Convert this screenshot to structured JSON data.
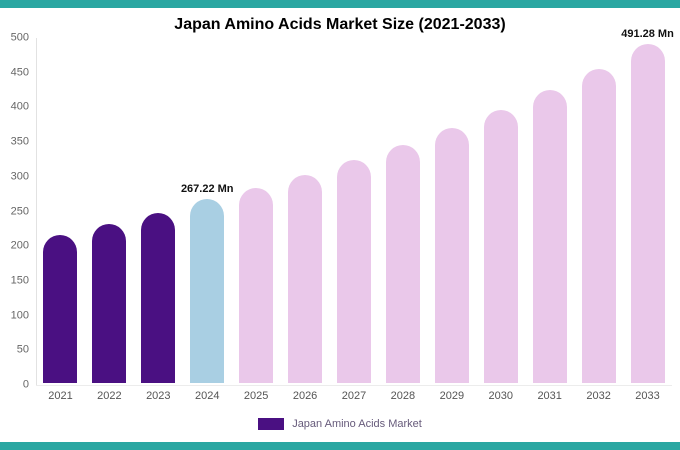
{
  "page": {
    "title": "Japan Amino Acids Market Size (2021-2033)",
    "accent_color": "#2aa7a2",
    "background": "#ffffff"
  },
  "legend": {
    "items": [
      {
        "label": "Japan Amino Acids Market",
        "swatch_color": "#4a1082"
      }
    ]
  },
  "chart_data": {
    "type": "bar",
    "title": "Japan Amino Acids Market Size (2021-2033)",
    "unit": "Mn",
    "categories": [
      "2021",
      "2022",
      "2023",
      "2024",
      "2025",
      "2026",
      "2027",
      "2028",
      "2029",
      "2030",
      "2031",
      "2032",
      "2033"
    ],
    "values": [
      215,
      230,
      247,
      267.22,
      283,
      302,
      323,
      345,
      370,
      396,
      424,
      455,
      491.28
    ],
    "bar_styles": [
      "historical",
      "historical",
      "historical",
      "current",
      "forecast",
      "forecast",
      "forecast",
      "forecast",
      "forecast",
      "forecast",
      "forecast",
      "forecast",
      "forecast"
    ],
    "colors": {
      "historical": "#4a1082",
      "current": "#a9cfe3",
      "forecast": "#eac8ea"
    },
    "annotations": [
      {
        "index": 3,
        "text": "267.22 Mn"
      },
      {
        "index": 12,
        "text": "491.28 Mn"
      }
    ],
    "ylim": [
      0,
      500
    ],
    "yticks": [
      0,
      50,
      100,
      150,
      200,
      250,
      300,
      350,
      400,
      450,
      500
    ],
    "grid": false,
    "legend_position": "bottom"
  }
}
